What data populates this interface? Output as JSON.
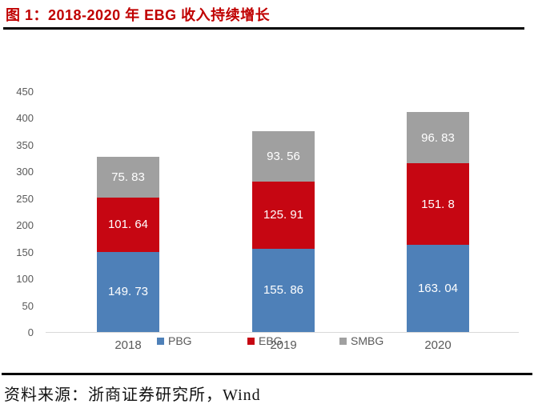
{
  "figure": {
    "title": "图 1：2018-2020 年 EBG 收入持续增长",
    "title_color": "#C00000",
    "source_note": "资料来源：浙商证券研究所，Wind"
  },
  "chart_data": {
    "type": "bar",
    "stacked": true,
    "title": "2018-2020 年 EBG 收入持续增长",
    "categories": [
      "2018",
      "2019",
      "2020"
    ],
    "series": [
      {
        "name": "PBG",
        "color": "#4E80B8",
        "values": [
          149.73,
          155.86,
          163.04
        ],
        "value_labels": [
          "149. 73",
          "155. 86",
          "163. 04"
        ]
      },
      {
        "name": "EBG",
        "color": "#C60612",
        "values": [
          101.64,
          125.91,
          151.8
        ],
        "value_labels": [
          "101. 64",
          "125. 91",
          "151. 8"
        ]
      },
      {
        "name": "SMBG",
        "color": "#A0A0A0",
        "values": [
          75.83,
          93.56,
          96.83
        ],
        "value_labels": [
          "75. 83",
          "93. 56",
          "96. 83"
        ]
      }
    ],
    "totals": [
      327.2,
      375.33,
      411.67
    ],
    "ylim": [
      0,
      450
    ],
    "yticks": [
      0,
      50,
      100,
      150,
      200,
      250,
      300,
      350,
      400,
      450
    ],
    "xlabel": "",
    "ylabel": "",
    "grid": false,
    "legend_position": "bottom",
    "value_label_color": "#ffffff",
    "axis_text_color": "#595959"
  }
}
